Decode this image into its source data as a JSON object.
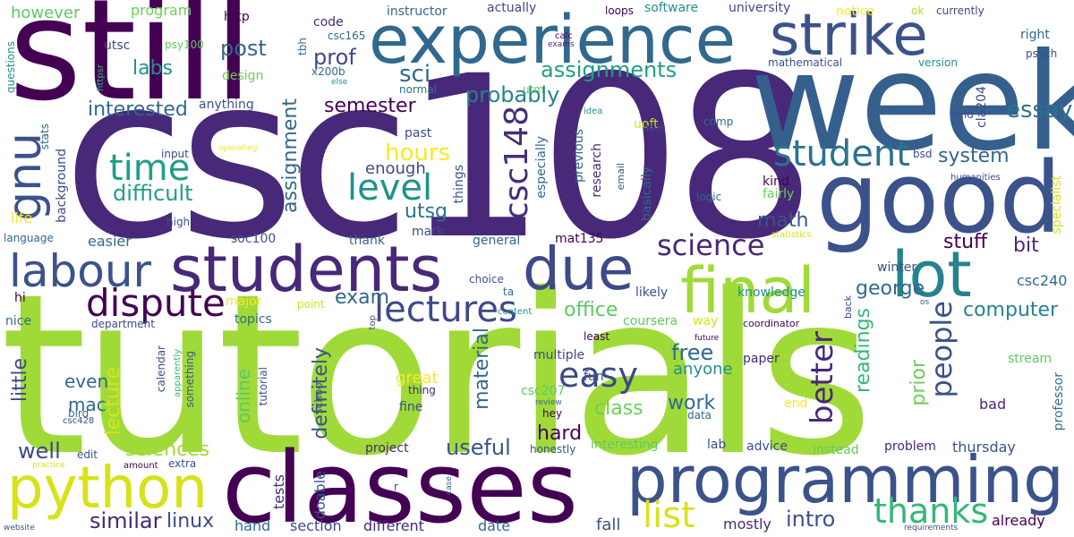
{
  "words": [
    {
      "text": "csc108",
      "color": "#482878"
    },
    {
      "text": "tutorials",
      "color": "#a0da39"
    },
    {
      "text": "week",
      "color": "#355f8d"
    },
    {
      "text": "still",
      "color": "#440154"
    },
    {
      "text": "good",
      "color": "#3b528b"
    },
    {
      "text": "classes",
      "color": "#440154"
    },
    {
      "text": "experience",
      "color": "#31688e"
    },
    {
      "text": "programming",
      "color": "#3b528b"
    },
    {
      "text": "students",
      "color": "#482878"
    },
    {
      "text": "strike",
      "color": "#3b528b"
    },
    {
      "text": "final",
      "color": "#a0da39"
    },
    {
      "text": "due",
      "color": "#3e4989"
    },
    {
      "text": "labour",
      "color": "#3b528b"
    },
    {
      "text": "python",
      "color": "#d8e219"
    },
    {
      "text": "lot",
      "color": "#26828e"
    },
    {
      "text": "gnu",
      "color": "#3b528b"
    },
    {
      "text": "time",
      "color": "#1f9e89"
    },
    {
      "text": "level",
      "color": "#21918c"
    },
    {
      "text": "student",
      "color": "#2c728e"
    },
    {
      "text": "dispute",
      "color": "#440154"
    },
    {
      "text": "lectures",
      "color": "#3e4989"
    },
    {
      "text": "science",
      "color": "#482878"
    },
    {
      "text": "easy",
      "color": "#3e4989"
    },
    {
      "text": "csc148",
      "color": "#472d7b"
    },
    {
      "text": "people",
      "color": "#3b528b"
    },
    {
      "text": "better",
      "color": "#482878"
    },
    {
      "text": "list",
      "color": "#d8e219"
    },
    {
      "text": "thanks",
      "color": "#35b779"
    },
    {
      "text": "essay",
      "color": "#2c728e"
    },
    {
      "text": "sci",
      "color": "#31688e"
    },
    {
      "text": "labs",
      "color": "#21918c"
    },
    {
      "text": "post",
      "color": "#31688e"
    },
    {
      "text": "prof",
      "color": "#3e4989"
    },
    {
      "text": "probably",
      "color": "#26828e"
    },
    {
      "text": "assignments",
      "color": "#1f9e89"
    },
    {
      "text": "semester",
      "color": "#440154"
    },
    {
      "text": "interested",
      "color": "#31688e"
    },
    {
      "text": "difficult",
      "color": "#1f9e89"
    },
    {
      "text": "assignment",
      "color": "#31688e"
    },
    {
      "text": "hours",
      "color": "#fde725"
    },
    {
      "text": "enough",
      "color": "#3e4989"
    },
    {
      "text": "utsg",
      "color": "#2c728e"
    },
    {
      "text": "math",
      "color": "#3b528b"
    },
    {
      "text": "system",
      "color": "#31688e"
    },
    {
      "text": "stuff",
      "color": "#440154"
    },
    {
      "text": "bit",
      "color": "#482878"
    },
    {
      "text": "george",
      "color": "#31688e"
    },
    {
      "text": "computer",
      "color": "#26828e"
    },
    {
      "text": "exam",
      "color": "#31688e"
    },
    {
      "text": "office",
      "color": "#5ec962"
    },
    {
      "text": "readings",
      "color": "#35b779"
    },
    {
      "text": "prior",
      "color": "#6ece58"
    },
    {
      "text": "free",
      "color": "#31688e"
    },
    {
      "text": "anyone",
      "color": "#21918c"
    },
    {
      "text": "work",
      "color": "#31688e"
    },
    {
      "text": "class",
      "color": "#6ece58"
    },
    {
      "text": "hard",
      "color": "#440154"
    },
    {
      "text": "material",
      "color": "#31688e"
    },
    {
      "text": "useful",
      "color": "#3b528b"
    },
    {
      "text": "definitely",
      "color": "#3b528b"
    },
    {
      "text": "online",
      "color": "#5ec962"
    },
    {
      "text": "sciences",
      "color": "#a0da39"
    },
    {
      "text": "well",
      "color": "#3e4989"
    },
    {
      "text": "similar",
      "color": "#482878"
    },
    {
      "text": "linux",
      "color": "#3e4989"
    },
    {
      "text": "little",
      "color": "#3e4989"
    },
    {
      "text": "lecture",
      "color": "#d8e219"
    },
    {
      "text": "mac",
      "color": "#31688e"
    },
    {
      "text": "even",
      "color": "#31688e"
    },
    {
      "text": "intro",
      "color": "#3b528b"
    },
    {
      "text": "thursday",
      "color": "#3b528b"
    },
    {
      "text": "already",
      "color": "#440154"
    },
    {
      "text": "mostly",
      "color": "#482878"
    },
    {
      "text": "fall",
      "color": "#3b528b"
    },
    {
      "text": "date",
      "color": "#31688e"
    },
    {
      "text": "different",
      "color": "#482878"
    },
    {
      "text": "section",
      "color": "#3e4989"
    },
    {
      "text": "hand",
      "color": "#2c728e"
    },
    {
      "text": "tests",
      "color": "#482878"
    },
    {
      "text": "doable",
      "color": "#3b528b"
    },
    {
      "text": "however",
      "color": "#5ec962"
    },
    {
      "text": "program",
      "color": "#6ece58"
    },
    {
      "text": "http",
      "color": "#440154"
    },
    {
      "text": "code",
      "color": "#482878"
    },
    {
      "text": "csc165",
      "color": "#31688e"
    },
    {
      "text": "instructor",
      "color": "#31688e"
    },
    {
      "text": "actually",
      "color": "#3e4989"
    },
    {
      "text": "software",
      "color": "#21918c"
    },
    {
      "text": "university",
      "color": "#3e4989"
    },
    {
      "text": "notice",
      "color": "#fde725"
    },
    {
      "text": "ok",
      "color": "#b5de2b"
    },
    {
      "text": "currently",
      "color": "#3e4989"
    },
    {
      "text": "right",
      "color": "#31688e"
    },
    {
      "text": "psych",
      "color": "#3b528b"
    },
    {
      "text": "version",
      "color": "#21918c"
    },
    {
      "text": "mathematical",
      "color": "#3b528b"
    },
    {
      "text": "cla204",
      "color": "#3e4989"
    },
    {
      "text": "field",
      "color": "#3b528b"
    },
    {
      "text": "utsc",
      "color": "#3e4989"
    },
    {
      "text": "psy100",
      "color": "#5ec962"
    },
    {
      "text": "design",
      "color": "#6ece58"
    },
    {
      "text": "anything",
      "color": "#3b528b"
    },
    {
      "text": "x200b",
      "color": "#31688e"
    },
    {
      "text": "tbh",
      "color": "#31688e"
    },
    {
      "text": "normal",
      "color": "#2c728e"
    },
    {
      "text": "utm",
      "color": "#5ec962"
    },
    {
      "text": "uoft",
      "color": "#d8e219"
    },
    {
      "text": "past",
      "color": "#3e4989"
    },
    {
      "text": "things",
      "color": "#3b528b"
    },
    {
      "text": "research",
      "color": "#482878"
    },
    {
      "text": "previous",
      "color": "#31688e"
    },
    {
      "text": "especially",
      "color": "#31688e"
    },
    {
      "text": "basically",
      "color": "#31688e"
    },
    {
      "text": "email",
      "color": "#3b528b"
    },
    {
      "text": "idea",
      "color": "#21918c"
    },
    {
      "text": "able",
      "color": "#3e4989"
    },
    {
      "text": "comp",
      "color": "#31688e"
    },
    {
      "text": "logic",
      "color": "#31688e"
    },
    {
      "text": "kind",
      "color": "#440154"
    },
    {
      "text": "fairly",
      "color": "#6ece58"
    },
    {
      "text": "bsd",
      "color": "#3e4989"
    },
    {
      "text": "humanities",
      "color": "#3e4989"
    },
    {
      "text": "specialist",
      "color": "#d8e219"
    },
    {
      "text": "statistics",
      "color": "#d8e219"
    },
    {
      "text": "mat135",
      "color": "#440154"
    },
    {
      "text": "general",
      "color": "#31688e"
    },
    {
      "text": "mark",
      "color": "#3b528b"
    },
    {
      "text": "thank",
      "color": "#31688e"
    },
    {
      "text": "soc100",
      "color": "#3b528b"
    },
    {
      "text": "easier",
      "color": "#31688e"
    },
    {
      "text": "language",
      "color": "#31688e"
    },
    {
      "text": "life",
      "color": "#fde725"
    },
    {
      "text": "high",
      "color": "#3b528b"
    },
    {
      "text": "input",
      "color": "#3e4989"
    },
    {
      "text": "operating",
      "color": "#fde725"
    },
    {
      "text": "background",
      "color": "#3e4989"
    },
    {
      "text": "stats",
      "color": "#31688e"
    },
    {
      "text": "questions",
      "color": "#21918c"
    },
    {
      "text": "httpsr",
      "color": "#35b779"
    },
    {
      "text": "else",
      "color": "#21918c"
    },
    {
      "text": "exams",
      "color": "#482878"
    },
    {
      "text": "calc",
      "color": "#440154"
    },
    {
      "text": "loops",
      "color": "#440154"
    },
    {
      "text": "knowledge",
      "color": "#21918c"
    },
    {
      "text": "likely",
      "color": "#3b528b"
    },
    {
      "text": "choice",
      "color": "#3b528b"
    },
    {
      "text": "ta",
      "color": "#31688e"
    },
    {
      "text": "content",
      "color": "#21918c"
    },
    {
      "text": "winter",
      "color": "#3e4989"
    },
    {
      "text": "csc240",
      "color": "#31688e"
    },
    {
      "text": "coordinator",
      "color": "#440154"
    },
    {
      "text": "back",
      "color": "#3e4989"
    },
    {
      "text": "os",
      "color": "#31688e"
    },
    {
      "text": "future",
      "color": "#440154"
    },
    {
      "text": "least",
      "color": "#440154"
    },
    {
      "text": "way",
      "color": "#d8e219"
    },
    {
      "text": "coursera",
      "color": "#5ec962"
    },
    {
      "text": "major",
      "color": "#fde725"
    },
    {
      "text": "topics",
      "color": "#31688e"
    },
    {
      "text": "department",
      "color": "#3e4989"
    },
    {
      "text": "point",
      "color": "#d8e219"
    },
    {
      "text": "hi",
      "color": "#440154"
    },
    {
      "text": "nice",
      "color": "#31688e"
    },
    {
      "text": "top",
      "color": "#3b528b"
    },
    {
      "text": "multiple",
      "color": "#3e4989"
    },
    {
      "text": "fun",
      "color": "#3b528b"
    },
    {
      "text": "great",
      "color": "#fde725"
    },
    {
      "text": "thing",
      "color": "#482878"
    },
    {
      "text": "fine",
      "color": "#3e4989"
    },
    {
      "text": "review",
      "color": "#31688e"
    },
    {
      "text": "hey",
      "color": "#440154"
    },
    {
      "text": "csc207",
      "color": "#5ec962"
    },
    {
      "text": "end",
      "color": "#fde725"
    },
    {
      "text": "paper",
      "color": "#482878"
    },
    {
      "text": "data",
      "color": "#31688e"
    },
    {
      "text": "stream",
      "color": "#5ec962"
    },
    {
      "text": "bad",
      "color": "#482878"
    },
    {
      "text": "professor",
      "color": "#2c728e"
    },
    {
      "text": "calendar",
      "color": "#3e4989"
    },
    {
      "text": "apparently",
      "color": "#35b779"
    },
    {
      "text": "something",
      "color": "#3b528b"
    },
    {
      "text": "tutorial",
      "color": "#3b528b"
    },
    {
      "text": "school",
      "color": "#3b528b"
    },
    {
      "text": "csc428",
      "color": "#3e4989"
    },
    {
      "text": "bird",
      "color": "#31688e"
    },
    {
      "text": "edit",
      "color": "#3b528b"
    },
    {
      "text": "practice",
      "color": "#d8e219"
    },
    {
      "text": "amount",
      "color": "#440154"
    },
    {
      "text": "extra",
      "color": "#3b528b"
    },
    {
      "text": "project",
      "color": "#482878"
    },
    {
      "text": "honestly",
      "color": "#3b528b"
    },
    {
      "text": "interesting",
      "color": "#5ec962"
    },
    {
      "text": "lab",
      "color": "#3e4989"
    },
    {
      "text": "advice",
      "color": "#3e4989"
    },
    {
      "text": "instead",
      "color": "#5ec962"
    },
    {
      "text": "problem",
      "color": "#482878"
    },
    {
      "text": "r",
      "color": "#3e4989"
    },
    {
      "text": "case",
      "color": "#31688e"
    },
    {
      "text": "website",
      "color": "#3b528b"
    },
    {
      "text": "requirements",
      "color": "#3b528b"
    }
  ]
}
